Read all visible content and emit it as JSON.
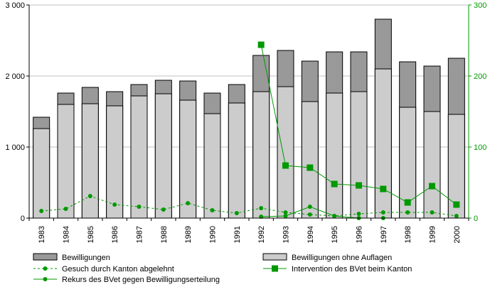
{
  "chart_data": {
    "type": "bar",
    "categories": [
      "1983",
      "1984",
      "1985",
      "1986",
      "1987",
      "1988",
      "1989",
      "1990",
      "1991",
      "1992",
      "1993",
      "1994",
      "1995",
      "1996",
      "1997",
      "1998",
      "1999",
      "2000"
    ],
    "left_axis": {
      "ylim": [
        0,
        3000
      ],
      "ticks": [
        0,
        1000,
        2000,
        3000
      ],
      "tick_labels": [
        "0",
        "1 000",
        "2 000",
        "3 000"
      ]
    },
    "right_axis": {
      "ylim": [
        0,
        300
      ],
      "ticks": [
        0,
        100,
        200,
        300
      ],
      "tick_labels": [
        "0",
        "100",
        "200",
        "300"
      ],
      "color": "#009900"
    },
    "series": [
      {
        "name": "Bewilligungen",
        "kind": "bar",
        "axis": "left",
        "color": "#999999",
        "values": [
          1420,
          1760,
          1840,
          1780,
          1880,
          1940,
          1930,
          1760,
          1880,
          2290,
          2360,
          2210,
          2340,
          2340,
          2800,
          2200,
          2140,
          2250
        ]
      },
      {
        "name": "Bewilligungen ohne Auflagen",
        "kind": "bar",
        "axis": "left",
        "color": "#cccccc",
        "values": [
          1260,
          1600,
          1610,
          1580,
          1720,
          1750,
          1660,
          1470,
          1620,
          1780,
          1850,
          1640,
          1760,
          1780,
          2100,
          1560,
          1500,
          1460
        ]
      },
      {
        "name": "Gesuch durch Kanton abgelehnt",
        "kind": "line",
        "style": "dashed",
        "marker": "circle",
        "axis": "right",
        "color": "#009900",
        "values": [
          10,
          13,
          31,
          19,
          16,
          12,
          21,
          11,
          7,
          14,
          8,
          5,
          3,
          6,
          8,
          8,
          8,
          3
        ]
      },
      {
        "name": "Intervention des BVet beim Kanton",
        "kind": "line",
        "style": "solid",
        "marker": "square",
        "axis": "right",
        "color": "#009900",
        "values": [
          null,
          null,
          null,
          null,
          null,
          null,
          null,
          null,
          null,
          244,
          74,
          71,
          48,
          46,
          41,
          22,
          45,
          19
        ]
      },
      {
        "name": "Rekurs des BVet gegen Bewilligungserteilung",
        "kind": "line",
        "style": "solid",
        "marker": "circle",
        "axis": "right",
        "color": "#009900",
        "values": [
          null,
          null,
          null,
          null,
          null,
          null,
          null,
          null,
          null,
          2,
          3,
          16,
          3,
          0,
          0,
          null,
          null,
          null
        ]
      }
    ],
    "legend_placement": "bottom",
    "grid": "horizontal"
  }
}
